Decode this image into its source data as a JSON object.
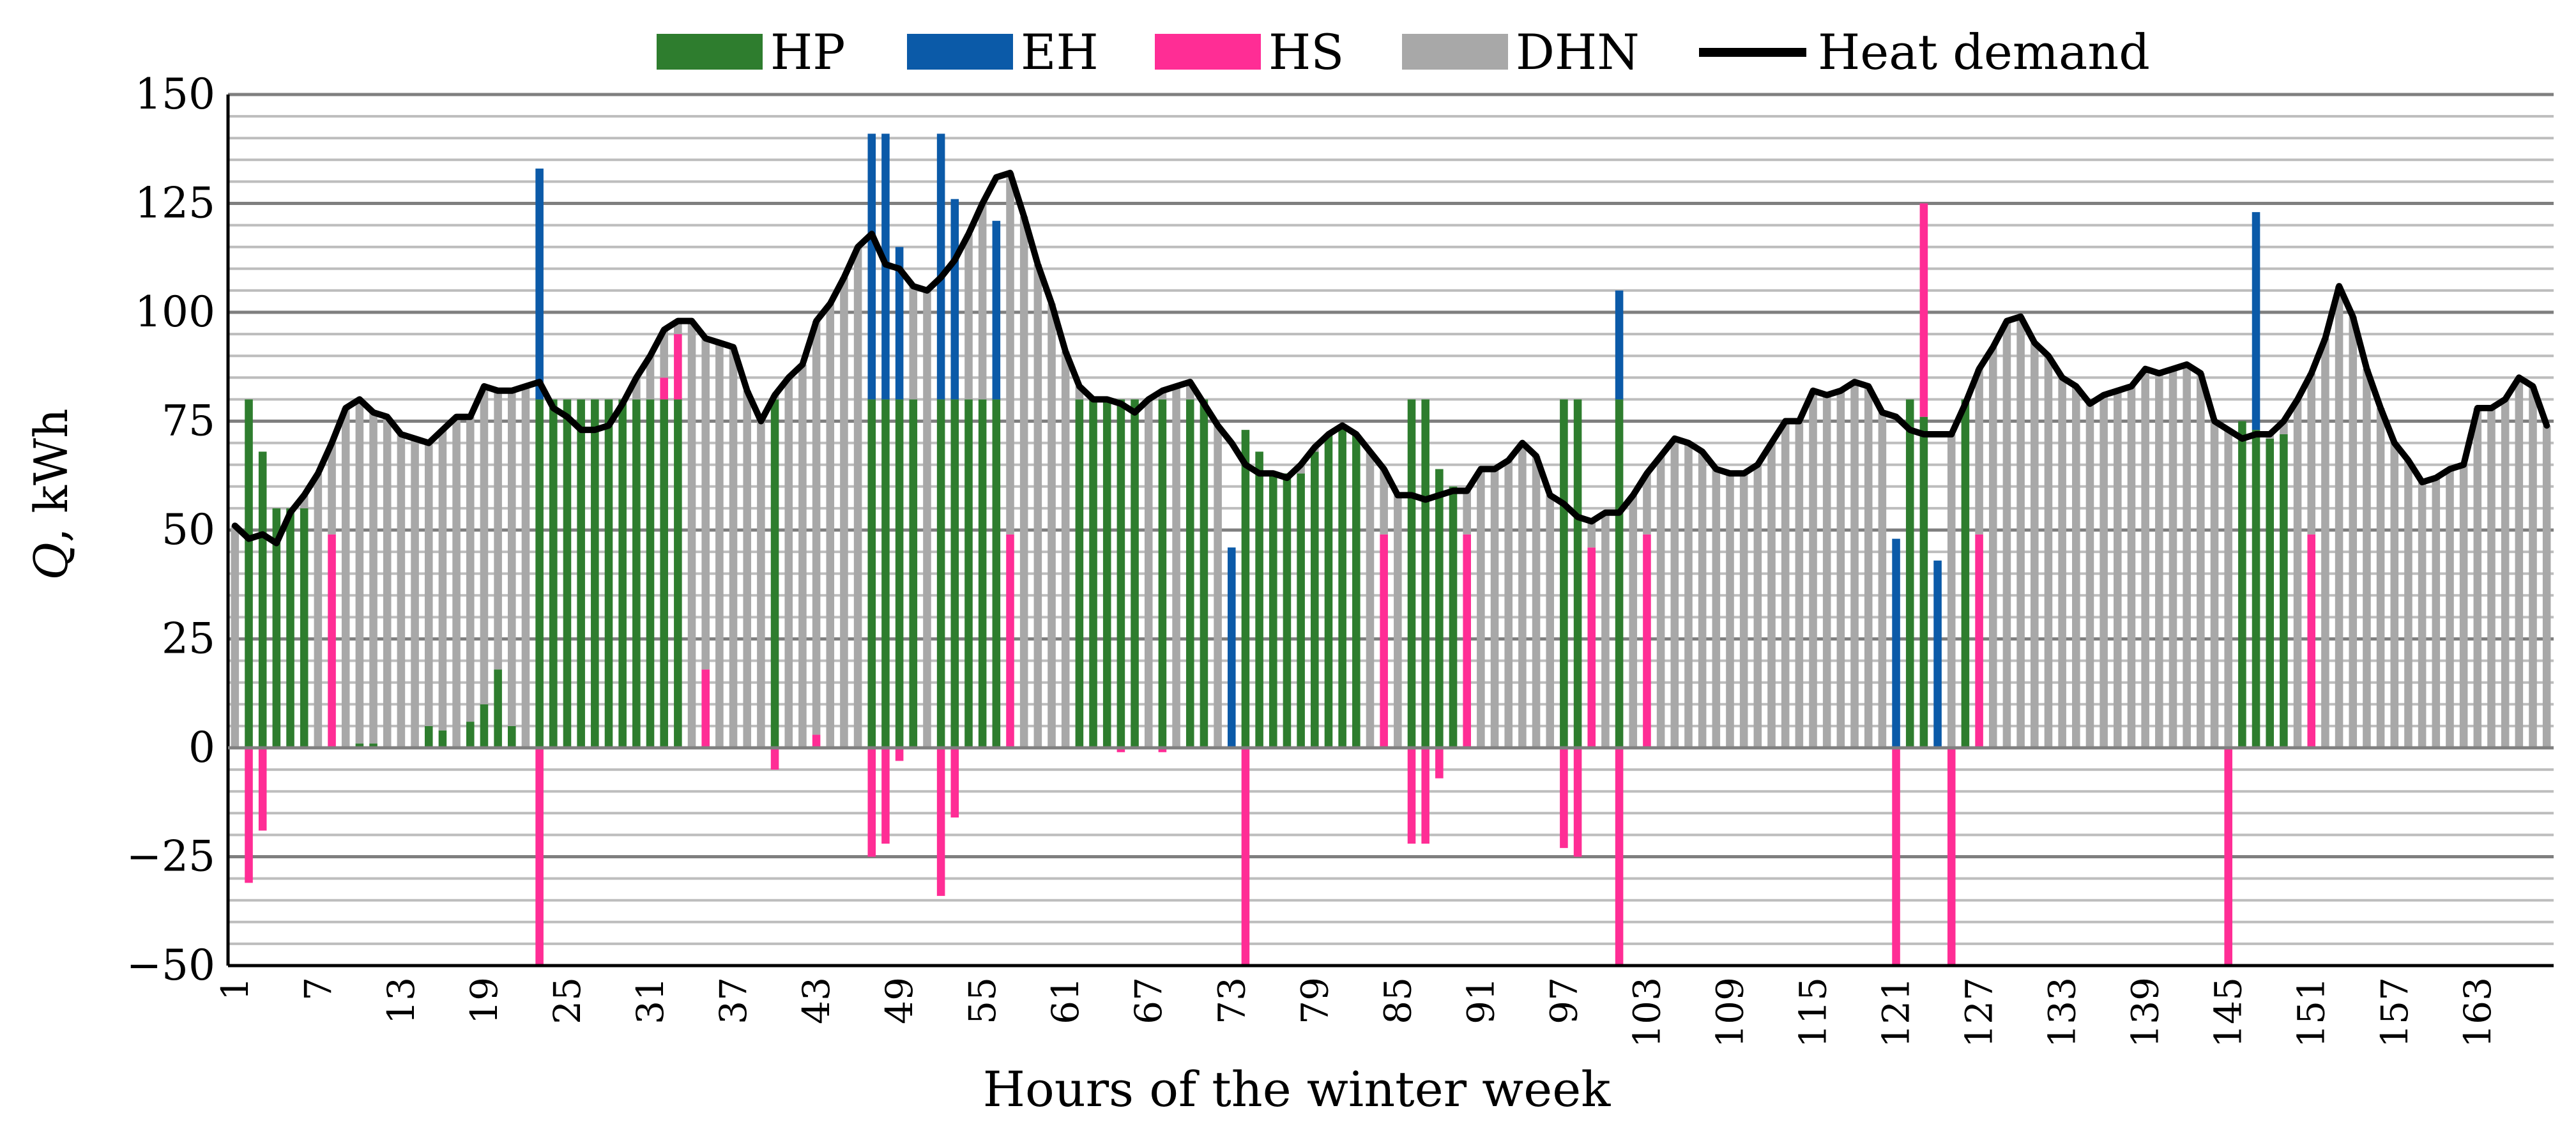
{
  "chart_data": {
    "type": "bar",
    "stacked": true,
    "xlabel": "Hours of the winter week",
    "ylabel_var": "Q",
    "ylabel_unit": ", kWh",
    "ylim": [
      -50,
      150
    ],
    "yticks": [
      -50,
      -25,
      0,
      25,
      50,
      75,
      100,
      125,
      150
    ],
    "ytick_labels": [
      "−50",
      "−25",
      "0",
      "25",
      "50",
      "75",
      "100",
      "125",
      "150"
    ],
    "xticks": [
      1,
      7,
      13,
      19,
      25,
      31,
      37,
      43,
      49,
      55,
      61,
      67,
      73,
      79,
      85,
      91,
      97,
      103,
      109,
      115,
      121,
      127,
      133,
      139,
      145,
      151,
      157,
      163
    ],
    "grid": true,
    "legend_position": "top",
    "hour_count": 168,
    "colors": {
      "HP": "#2e7d2e",
      "EH": "#0b5aa8",
      "HS": "#ff2d95",
      "DHN": "#a8a8a8",
      "demand": "#000000",
      "grid_major": "#7f7f7f",
      "grid_minor": "#bdbdbd"
    },
    "series": [
      {
        "name": "HP",
        "key": "HP"
      },
      {
        "name": "EH",
        "key": "EH"
      },
      {
        "name": "HS",
        "key": "HS"
      },
      {
        "name": "DHN",
        "key": "DHN"
      },
      {
        "name": "Heat demand",
        "key": "demand"
      }
    ],
    "demand": [
      51,
      48,
      49,
      47,
      54,
      58,
      63,
      70,
      78,
      80,
      77,
      76,
      72,
      71,
      70,
      73,
      76,
      76,
      83,
      82,
      82,
      83,
      84,
      78,
      76,
      73,
      73,
      74,
      79,
      85,
      90,
      96,
      98,
      98,
      94,
      93,
      92,
      82,
      75,
      81,
      85,
      88,
      98,
      102,
      108,
      115,
      118,
      111,
      110,
      106,
      105,
      108,
      112,
      118,
      125,
      131,
      132,
      122,
      111,
      102,
      91,
      83,
      80,
      80,
      79,
      77,
      80,
      82,
      83,
      84,
      79,
      74,
      70,
      65,
      63,
      63,
      62,
      65,
      69,
      72,
      74,
      72,
      68,
      64,
      58,
      58,
      57,
      58,
      59,
      59,
      64,
      64,
      66,
      70,
      67,
      58,
      56,
      53,
      52,
      54,
      54,
      58,
      63,
      67,
      71,
      70,
      68,
      64,
      63,
      63,
      65,
      70,
      75,
      75,
      82,
      81,
      82,
      84,
      83,
      77,
      76,
      73,
      72,
      72,
      72,
      79,
      87,
      92,
      98,
      99,
      93,
      90,
      85,
      83,
      79,
      81,
      82,
      83,
      87,
      86,
      87,
      88,
      86,
      75,
      73,
      71,
      72,
      72,
      75,
      80,
      86,
      94,
      106,
      99,
      87,
      78,
      70,
      66,
      61,
      62,
      64,
      65,
      78,
      78,
      80,
      85,
      83,
      74
    ],
    "HP": [
      0,
      80,
      68,
      55,
      55,
      55,
      0,
      0,
      0,
      1,
      1,
      0,
      0,
      0,
      5,
      4,
      0,
      6,
      10,
      18,
      5,
      0,
      80,
      80,
      80,
      80,
      80,
      80,
      80,
      80,
      80,
      80,
      80,
      0,
      0,
      0,
      0,
      0,
      0,
      80,
      0,
      0,
      0,
      0,
      0,
      0,
      80,
      80,
      80,
      80,
      0,
      80,
      80,
      80,
      80,
      80,
      0,
      0,
      0,
      0,
      0,
      80,
      80,
      80,
      80,
      80,
      0,
      80,
      0,
      80,
      80,
      0,
      0,
      73,
      68,
      63,
      63,
      63,
      68,
      72,
      74,
      72,
      0,
      0,
      0,
      80,
      80,
      64,
      60,
      0,
      0,
      0,
      0,
      0,
      0,
      0,
      80,
      80,
      0,
      0,
      80,
      0,
      0,
      0,
      0,
      0,
      0,
      0,
      0,
      0,
      0,
      0,
      0,
      0,
      0,
      0,
      0,
      0,
      0,
      0,
      0,
      80,
      76,
      0,
      0,
      80,
      0,
      0,
      0,
      0,
      0,
      0,
      0,
      0,
      0,
      0,
      0,
      0,
      0,
      0,
      0,
      0,
      0,
      0,
      0,
      75,
      73,
      71,
      72,
      0,
      0,
      0,
      0,
      0,
      0,
      0,
      0,
      0,
      0,
      0,
      0,
      0,
      0,
      0,
      0,
      0,
      0,
      0
    ],
    "EH": [
      0,
      0,
      0,
      0,
      0,
      0,
      0,
      0,
      0,
      0,
      0,
      0,
      0,
      0,
      0,
      0,
      0,
      0,
      0,
      0,
      0,
      0,
      53,
      0,
      0,
      0,
      0,
      0,
      0,
      0,
      0,
      0,
      0,
      0,
      0,
      0,
      0,
      0,
      0,
      0,
      0,
      0,
      0,
      0,
      0,
      0,
      61,
      61,
      35,
      0,
      0,
      61,
      46,
      0,
      0,
      41,
      0,
      0,
      0,
      0,
      0,
      0,
      0,
      0,
      0,
      0,
      0,
      0,
      0,
      0,
      0,
      0,
      46,
      0,
      0,
      0,
      0,
      0,
      0,
      0,
      0,
      0,
      0,
      0,
      0,
      0,
      0,
      0,
      0,
      0,
      0,
      0,
      0,
      0,
      0,
      0,
      0,
      0,
      0,
      0,
      25,
      0,
      0,
      0,
      0,
      0,
      0,
      0,
      0,
      0,
      0,
      0,
      0,
      0,
      0,
      0,
      0,
      0,
      0,
      0,
      48,
      0,
      0,
      43,
      0,
      0,
      0,
      0,
      0,
      0,
      0,
      0,
      0,
      0,
      0,
      0,
      0,
      0,
      0,
      0,
      0,
      0,
      0,
      0,
      0,
      0,
      50,
      0,
      0,
      0,
      0,
      0,
      0,
      0,
      0,
      0,
      0,
      0,
      0,
      0,
      0,
      0,
      0,
      0,
      0,
      0,
      0,
      0,
      0
    ],
    "HS": [
      0,
      -31,
      -19,
      0,
      0,
      0,
      0,
      49,
      0,
      0,
      0,
      0,
      0,
      0,
      0,
      0,
      0,
      0,
      0,
      0,
      0,
      0,
      -50,
      0,
      0,
      0,
      0,
      0,
      0,
      0,
      0,
      5,
      15,
      0,
      18,
      0,
      0,
      0,
      0,
      -5,
      0,
      0,
      3,
      0,
      0,
      0,
      -25,
      -22,
      -3,
      0,
      0,
      -34,
      -16,
      0,
      0,
      0,
      49,
      0,
      0,
      0,
      0,
      0,
      0,
      0,
      -1,
      0,
      0,
      -1,
      0,
      0,
      0,
      0,
      0,
      -50,
      0,
      0,
      0,
      0,
      0,
      0,
      0,
      0,
      0,
      49,
      0,
      -22,
      -22,
      -7,
      0,
      49,
      0,
      0,
      0,
      0,
      0,
      0,
      -23,
      -25,
      46,
      0,
      -50,
      0,
      49,
      0,
      0,
      0,
      0,
      0,
      0,
      0,
      0,
      0,
      0,
      0,
      0,
      0,
      0,
      0,
      0,
      0,
      -50,
      0,
      49,
      0,
      -50,
      0,
      49,
      0,
      0,
      0,
      0,
      0,
      0,
      0,
      0,
      0,
      0,
      0,
      0,
      0,
      0,
      0,
      0,
      0,
      -50,
      0,
      0,
      0,
      0,
      0,
      49,
      0,
      0,
      0,
      0,
      0,
      0,
      0,
      0,
      0,
      0,
      0,
      0,
      0,
      0,
      0,
      0,
      0,
      0
    ]
  }
}
